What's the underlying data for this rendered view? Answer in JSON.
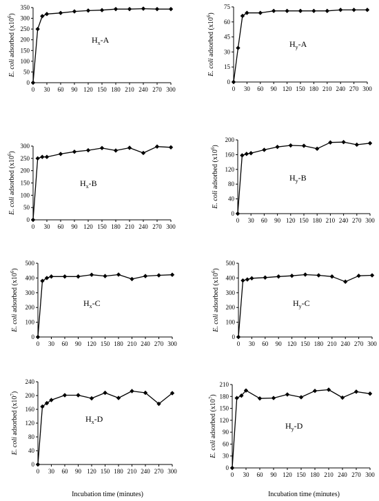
{
  "figure": {
    "xlabel_left": "Incubation time (minutes)",
    "xlabel_right": "Incubation time (minutes)"
  },
  "chart_data": [
    {
      "type": "line",
      "label_main": "H",
      "label_sub": "x",
      "label_suffix": "-A",
      "ylabel_italic": "E. coli",
      "ylabel_rest": " adsorbed (x10",
      "ylabel_exp": "6",
      "ylabel_close": ")",
      "ylim": [
        0,
        350
      ],
      "yticks": [
        0,
        50,
        100,
        150,
        200,
        250,
        300,
        350
      ],
      "xticks": [
        0,
        30,
        60,
        90,
        120,
        150,
        180,
        210,
        240,
        270,
        300
      ],
      "xlim": [
        0,
        300
      ],
      "x": [
        0,
        10,
        20,
        30,
        60,
        90,
        120,
        150,
        180,
        210,
        240,
        270,
        300
      ],
      "values": [
        0,
        250,
        310,
        320,
        325,
        332,
        336,
        338,
        343,
        343,
        345,
        343,
        343
      ]
    },
    {
      "type": "line",
      "label_main": "H",
      "label_sub": "y",
      "label_suffix": "-A",
      "ylabel_italic": "E. coli",
      "ylabel_rest": " adsorbed (x10",
      "ylabel_exp": "6",
      "ylabel_close": ")",
      "ylim": [
        0,
        75
      ],
      "yticks": [
        0,
        15,
        30,
        45,
        60,
        75
      ],
      "xticks": [
        0,
        30,
        60,
        90,
        120,
        150,
        180,
        210,
        240,
        270,
        300
      ],
      "xlim": [
        0,
        300
      ],
      "x": [
        0,
        10,
        20,
        30,
        60,
        90,
        120,
        150,
        180,
        210,
        240,
        270,
        300
      ],
      "values": [
        0,
        34,
        66,
        69,
        69,
        71,
        71,
        71,
        71,
        71,
        72,
        72,
        72
      ]
    },
    {
      "type": "line",
      "label_main": "H",
      "label_sub": "x",
      "label_suffix": "-B",
      "ylabel_italic": "E. coli",
      "ylabel_rest": " adsorbed (x10",
      "ylabel_exp": "6",
      "ylabel_close": ")",
      "ylim": [
        0,
        300
      ],
      "yticks": [
        0,
        50,
        100,
        150,
        200,
        250,
        300
      ],
      "xticks": [
        0,
        30,
        60,
        90,
        120,
        150,
        180,
        210,
        240,
        270,
        300
      ],
      "xlim": [
        0,
        300
      ],
      "x": [
        0,
        10,
        20,
        30,
        60,
        90,
        120,
        150,
        180,
        210,
        240,
        270,
        300
      ],
      "values": [
        0,
        250,
        256,
        256,
        268,
        277,
        283,
        292,
        282,
        293,
        272,
        298,
        295
      ]
    },
    {
      "type": "line",
      "label_main": "H",
      "label_sub": "y",
      "label_suffix": "-B",
      "ylabel_italic": "E. coli",
      "ylabel_rest": " adsorbed (x10",
      "ylabel_exp": "6",
      "ylabel_close": ")",
      "ylim": [
        0,
        200
      ],
      "yticks": [
        0,
        40,
        80,
        120,
        160,
        200
      ],
      "xticks": [
        0,
        30,
        60,
        90,
        120,
        150,
        180,
        210,
        240,
        270,
        300
      ],
      "xlim": [
        0,
        300
      ],
      "x": [
        0,
        10,
        20,
        30,
        60,
        90,
        120,
        150,
        180,
        210,
        240,
        270,
        300
      ],
      "values": [
        0,
        158,
        162,
        164,
        173,
        181,
        185,
        184,
        176,
        193,
        194,
        187,
        191
      ]
    },
    {
      "type": "line",
      "label_main": "H",
      "label_sub": "x",
      "label_suffix": "-C",
      "ylabel_italic": "E. coli",
      "ylabel_rest": " adsorbed (x10",
      "ylabel_exp": "6",
      "ylabel_close": ")",
      "ylim": [
        0,
        500
      ],
      "yticks": [
        0,
        100,
        200,
        300,
        400,
        500
      ],
      "xticks": [
        0,
        30,
        60,
        90,
        120,
        150,
        180,
        210,
        240,
        270,
        300
      ],
      "xlim": [
        0,
        300
      ],
      "x": [
        0,
        10,
        20,
        30,
        60,
        90,
        120,
        150,
        180,
        210,
        240,
        270,
        300
      ],
      "values": [
        0,
        380,
        400,
        410,
        410,
        410,
        422,
        413,
        423,
        393,
        413,
        418,
        422
      ]
    },
    {
      "type": "line",
      "label_main": "H",
      "label_sub": "y",
      "label_suffix": "-C",
      "ylabel_italic": "E. coli",
      "ylabel_rest": " adsorbed (x10",
      "ylabel_exp": "6",
      "ylabel_close": ")",
      "ylim": [
        0,
        500
      ],
      "yticks": [
        0,
        100,
        200,
        300,
        400,
        500
      ],
      "xticks": [
        0,
        30,
        60,
        90,
        120,
        150,
        180,
        210,
        240,
        270,
        300
      ],
      "xlim": [
        0,
        300
      ],
      "x": [
        0,
        10,
        20,
        30,
        60,
        90,
        120,
        150,
        180,
        210,
        240,
        270,
        300
      ],
      "values": [
        0,
        383,
        390,
        398,
        403,
        410,
        415,
        423,
        418,
        410,
        375,
        415,
        418
      ]
    },
    {
      "type": "line",
      "label_main": "H",
      "label_sub": "x",
      "label_suffix": "-D",
      "ylabel_italic": "E. coli",
      "ylabel_rest": " adsorbed (x10",
      "ylabel_exp": "7",
      "ylabel_close": ")",
      "ylim": [
        0,
        240
      ],
      "yticks": [
        0,
        40,
        80,
        120,
        160,
        200,
        240
      ],
      "xticks": [
        0,
        30,
        60,
        90,
        120,
        150,
        180,
        210,
        240,
        270,
        300
      ],
      "xlim": [
        0,
        300
      ],
      "x": [
        0,
        10,
        20,
        30,
        60,
        90,
        120,
        150,
        180,
        210,
        240,
        270,
        300
      ],
      "values": [
        0,
        168,
        178,
        187,
        201,
        201,
        192,
        208,
        193,
        213,
        208,
        176,
        207
      ]
    },
    {
      "type": "line",
      "label_main": "H",
      "label_sub": "y",
      "label_suffix": "-D",
      "ylabel_italic": "E. coli",
      "ylabel_rest": " adsorbed (x10",
      "ylabel_exp": "7",
      "ylabel_close": ")",
      "ylim": [
        0,
        210
      ],
      "yticks": [
        0,
        30,
        60,
        90,
        120,
        150,
        180,
        210
      ],
      "xticks": [
        0,
        30,
        60,
        90,
        120,
        150,
        180,
        210,
        240,
        270,
        300
      ],
      "xlim": [
        0,
        300
      ],
      "x": [
        0,
        10,
        20,
        30,
        60,
        90,
        120,
        150,
        180,
        210,
        240,
        270,
        300
      ],
      "values": [
        0,
        176,
        182,
        195,
        175,
        176,
        185,
        178,
        194,
        197,
        177,
        192,
        187
      ]
    }
  ]
}
